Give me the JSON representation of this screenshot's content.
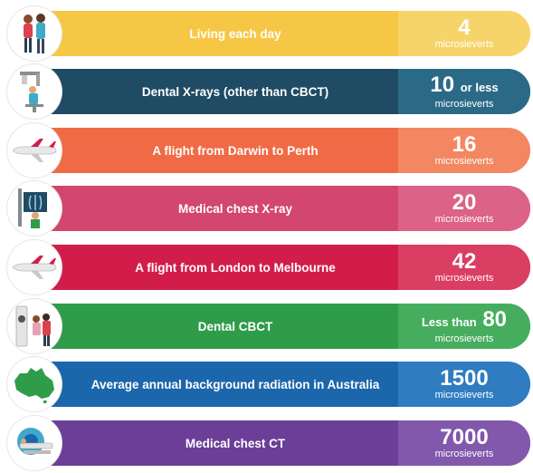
{
  "rows": [
    {
      "label": "Living each day",
      "value": "4",
      "prefix": "",
      "suffix": "",
      "unit": "microsieverts",
      "color": "#f6c745",
      "valueColor": "#f7d469",
      "icon": "couple-icon"
    },
    {
      "label": "Dental X-rays (other than CBCT)",
      "value": "10",
      "prefix": "",
      "suffix": "or less",
      "unit": "microsieverts",
      "color": "#1f4b64",
      "valueColor": "#2b6a86",
      "icon": "dental-xray-machine-icon"
    },
    {
      "label": "A flight from Darwin to Perth",
      "value": "16",
      "prefix": "",
      "suffix": "",
      "unit": "microsieverts",
      "color": "#f06b45",
      "valueColor": "#f38761",
      "icon": "airplane-icon"
    },
    {
      "label": "Medical chest X-ray",
      "value": "20",
      "prefix": "",
      "suffix": "",
      "unit": "microsieverts",
      "color": "#d3466d",
      "valueColor": "#dc6287",
      "icon": "chest-xray-icon"
    },
    {
      "label": "A flight from London to Melbourne",
      "value": "42",
      "prefix": "",
      "suffix": "",
      "unit": "microsieverts",
      "color": "#d21d4a",
      "valueColor": "#da3e62",
      "icon": "airplane-icon"
    },
    {
      "label": "Dental CBCT",
      "value": "80",
      "prefix": "Less than",
      "suffix": "",
      "unit": "microsieverts",
      "color": "#2f9c4a",
      "valueColor": "#46ad5e",
      "icon": "cbct-scanner-icon"
    },
    {
      "label": "Average annual background radiation in Australia",
      "value": "1500",
      "prefix": "",
      "suffix": "",
      "unit": "microsieverts",
      "color": "#1c66ab",
      "valueColor": "#2f7cc0",
      "icon": "australia-map-icon"
    },
    {
      "label": "Medical chest CT",
      "value": "7000",
      "prefix": "",
      "suffix": "",
      "unit": "microsieverts",
      "color": "#6b3f98",
      "valueColor": "#8158ab",
      "icon": "ct-scanner-icon"
    }
  ]
}
